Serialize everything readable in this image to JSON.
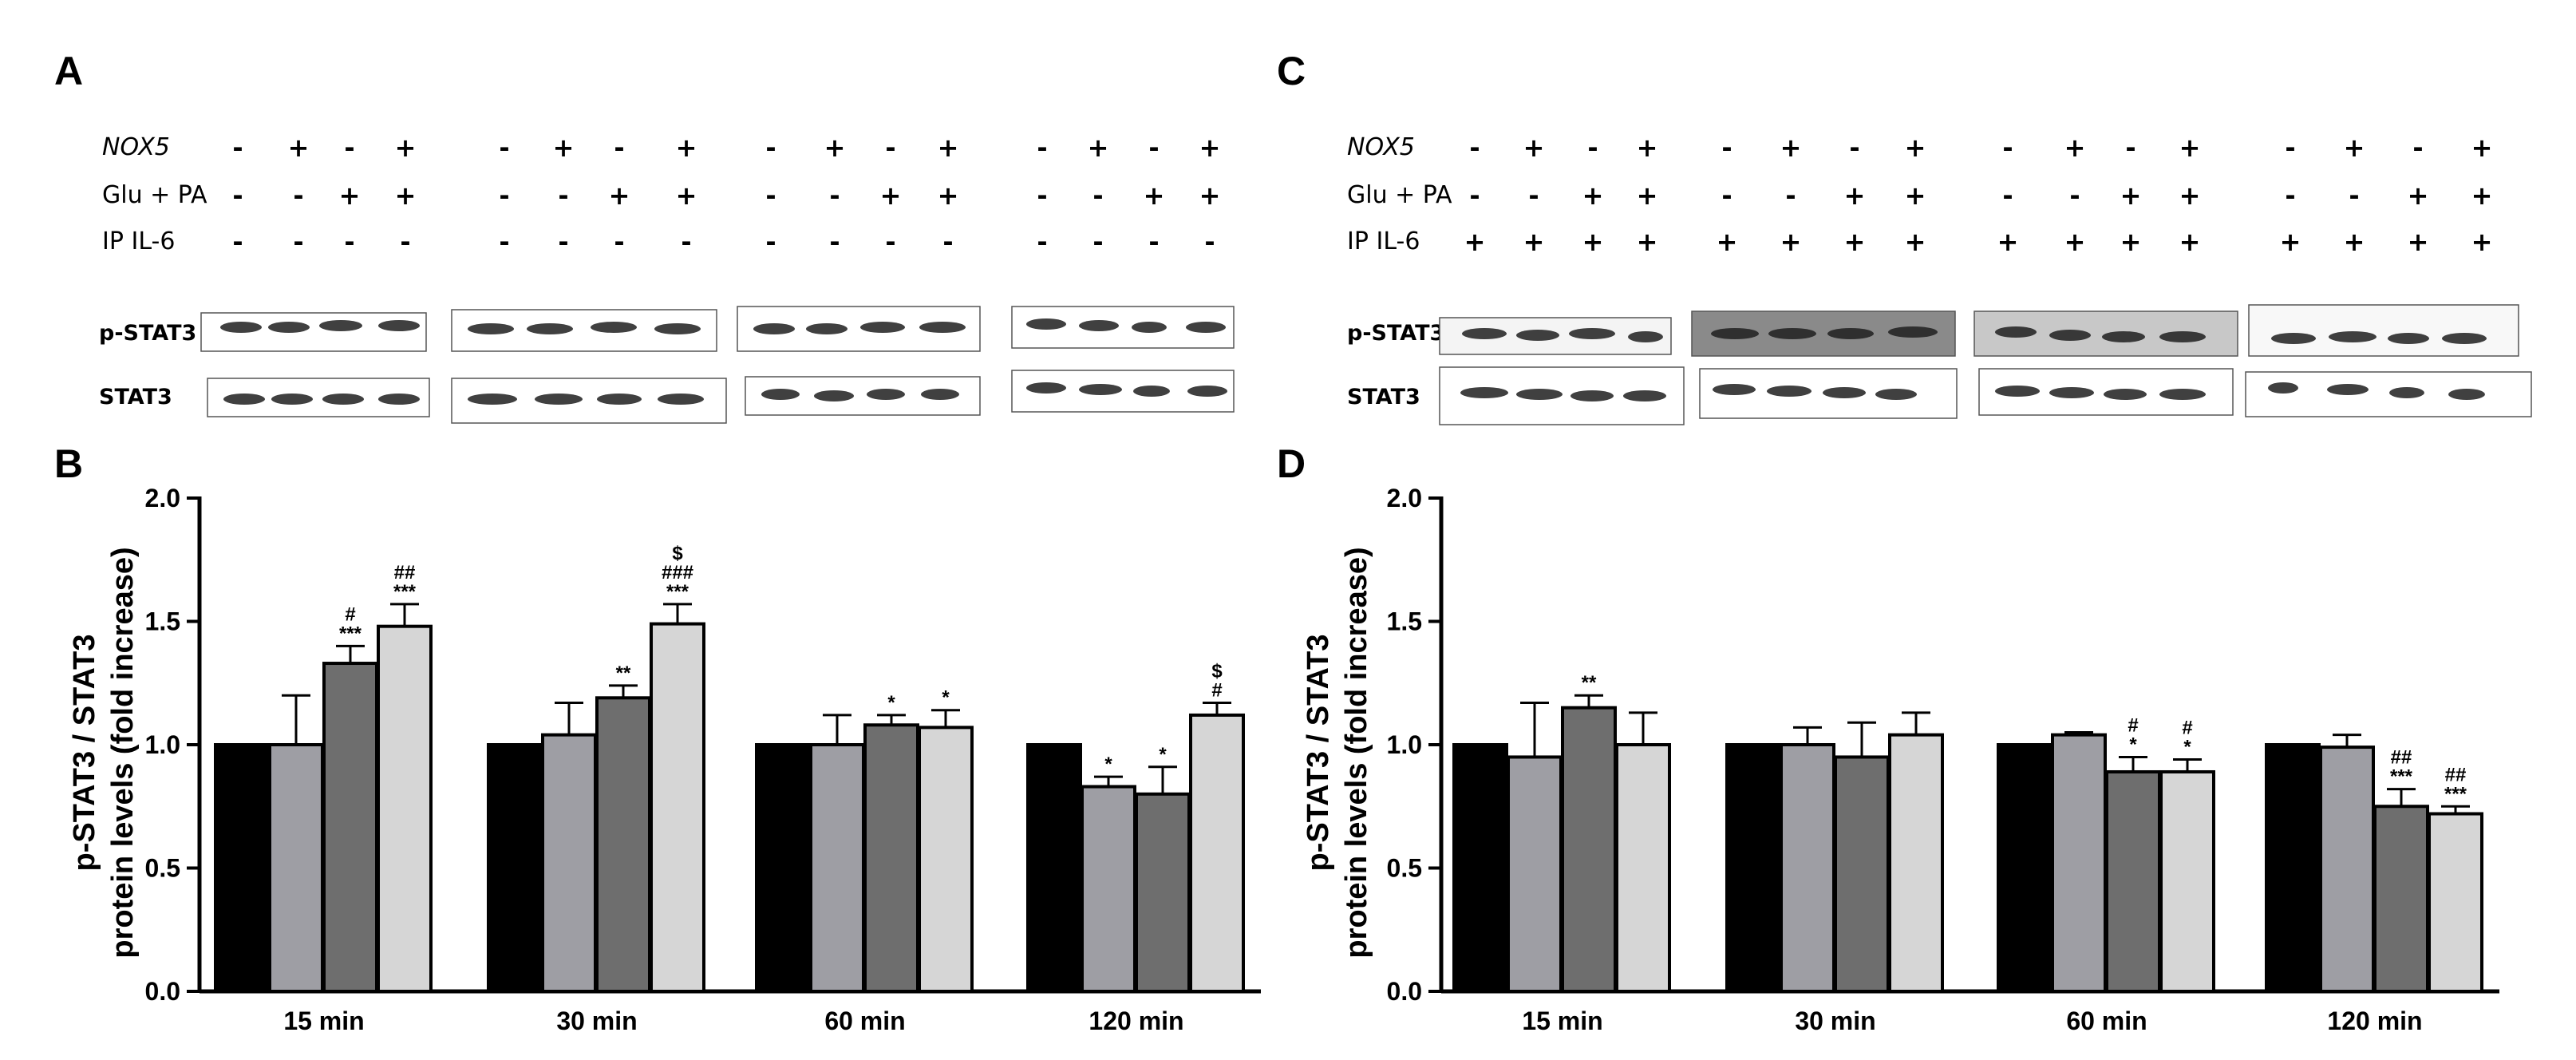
{
  "panel_labels": {
    "A": "A",
    "B": "B",
    "C": "C",
    "D": "D"
  },
  "treatment_rows": {
    "A": [
      {
        "label": "NOX5",
        "italic": true,
        "signs": [
          "-",
          "+",
          "-",
          "+",
          "-",
          "+",
          "-",
          "+",
          "-",
          "+",
          "-",
          "+",
          "-",
          "+",
          "-",
          "+"
        ]
      },
      {
        "label": "Glu + PA",
        "italic": false,
        "signs": [
          "-",
          "-",
          "+",
          "+",
          "-",
          "-",
          "+",
          "+",
          "-",
          "-",
          "+",
          "+",
          "-",
          "-",
          "+",
          "+"
        ]
      },
      {
        "label": "IP IL-6",
        "italic": false,
        "signs": [
          "-",
          "-",
          "-",
          "-",
          "-",
          "-",
          "-",
          "-",
          "-",
          "-",
          "-",
          "-",
          "-",
          "-",
          "-",
          "-"
        ]
      }
    ],
    "C": [
      {
        "label": "NOX5",
        "italic": true,
        "signs": [
          "-",
          "+",
          "-",
          "+",
          "-",
          "+",
          "-",
          "+",
          "-",
          "+",
          "-",
          "+",
          "-",
          "+",
          "-",
          "+"
        ]
      },
      {
        "label": "Glu + PA",
        "italic": false,
        "signs": [
          "-",
          "-",
          "+",
          "+",
          "-",
          "-",
          "+",
          "+",
          "-",
          "-",
          "+",
          "+",
          "-",
          "-",
          "+",
          "+"
        ]
      },
      {
        "label": "IP IL-6",
        "italic": false,
        "signs": [
          "+",
          "+",
          "+",
          "+",
          "+",
          "+",
          "+",
          "+",
          "+",
          "+",
          "+",
          "+",
          "+",
          "+",
          "+",
          "+"
        ]
      }
    ]
  },
  "blot_labels": {
    "phospho": "p-STAT3",
    "total": "STAT3"
  },
  "chart_data": [
    {
      "panel": "B",
      "type": "bar",
      "categories": [
        "15 min",
        "30 min",
        "60 min",
        "120 min"
      ],
      "ylabel_lines": [
        "p-STAT3 / STAT3",
        "protein levels (fold increase)"
      ],
      "ylim": [
        0,
        2.0
      ],
      "yticks": [
        "0.0",
        "0.5",
        "1.0",
        "1.5",
        "2.0"
      ],
      "bar_colors": [
        "#000000",
        "#9e9ea4",
        "#6e6e6e",
        "#d6d6d6"
      ],
      "values": [
        [
          1.0,
          1.0,
          1.33,
          1.48
        ],
        [
          1.0,
          1.04,
          1.19,
          1.49
        ],
        [
          1.0,
          1.0,
          1.08,
          1.07
        ],
        [
          1.0,
          0.83,
          0.8,
          1.12
        ]
      ],
      "errors": [
        [
          0,
          0.2,
          0.07,
          0.09
        ],
        [
          0,
          0.13,
          0.05,
          0.08
        ],
        [
          0,
          0.12,
          0.04,
          0.07
        ],
        [
          0,
          0.04,
          0.11,
          0.05
        ]
      ],
      "annotations": [
        [
          "",
          "",
          "#\n***",
          "##\n***"
        ],
        [
          "",
          "",
          "**",
          "$\n###\n***"
        ],
        [
          "",
          "",
          "*",
          "*"
        ],
        [
          "",
          "*",
          "*",
          "$\n#"
        ]
      ]
    },
    {
      "panel": "D",
      "type": "bar",
      "categories": [
        "15 min",
        "30 min",
        "60 min",
        "120 min"
      ],
      "ylabel_lines": [
        "p-STAT3 / STAT3",
        "protein levels (fold increase)"
      ],
      "ylim": [
        0,
        2.0
      ],
      "yticks": [
        "0.0",
        "0.5",
        "1.0",
        "1.5",
        "2.0"
      ],
      "bar_colors": [
        "#000000",
        "#9e9ea4",
        "#6e6e6e",
        "#d6d6d6"
      ],
      "values": [
        [
          1.0,
          0.95,
          1.15,
          1.0
        ],
        [
          1.0,
          1.0,
          0.95,
          1.04
        ],
        [
          1.0,
          1.04,
          0.89,
          0.89
        ],
        [
          1.0,
          0.99,
          0.75,
          0.72
        ]
      ],
      "errors": [
        [
          0,
          0.22,
          0.05,
          0.13
        ],
        [
          0,
          0.07,
          0.14,
          0.09
        ],
        [
          0,
          0.01,
          0.06,
          0.05
        ],
        [
          0,
          0.05,
          0.07,
          0.03
        ]
      ],
      "annotations": [
        [
          "",
          "",
          "**",
          ""
        ],
        [
          "",
          "",
          "",
          ""
        ],
        [
          "",
          "",
          "#\n*",
          "#\n*"
        ],
        [
          "",
          "",
          "##\n***",
          "##\n***"
        ]
      ]
    }
  ]
}
